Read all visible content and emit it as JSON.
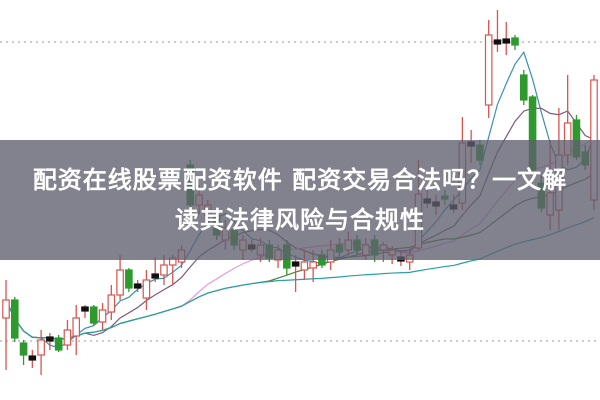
{
  "banner": {
    "title_lines": [
      "配资在线股票配资软件 配资交易合法吗？一文解",
      "读其法律风险与合规性"
    ]
  },
  "chart_data": {
    "type": "candlestick",
    "title": "",
    "xlabel": "",
    "ylabel": "",
    "ylim": [
      0,
      40
    ],
    "grid": false,
    "reference_lines": [
      35.8,
      5.9
    ],
    "colors": {
      "up": "#d9534f",
      "down": "#2e9a2e",
      "doji": "#111111",
      "reference": "#999999"
    },
    "moving_averages": [
      {
        "period": 5,
        "color": "#3a8fb0"
      },
      {
        "period": 10,
        "color": "#7a5a7a"
      },
      {
        "period": 20,
        "color": "#e39be0"
      },
      {
        "period": 30,
        "color": "#4e7d3c"
      },
      {
        "period": 60,
        "color": "#2aa0a0"
      }
    ],
    "candles": [
      [
        8.2,
        10.0,
        12.0,
        3.0
      ],
      [
        10.0,
        6.2,
        10.3,
        5.8
      ],
      [
        5.7,
        4.5,
        6.0,
        3.5
      ],
      [
        4.3,
        4.4,
        5.0,
        3.2
      ],
      [
        4.5,
        6.0,
        7.0,
        2.5
      ],
      [
        6.2,
        6.3,
        6.7,
        5.0
      ],
      [
        6.2,
        5.0,
        6.5,
        4.8
      ],
      [
        5.5,
        7.0,
        8.0,
        5.0
      ],
      [
        6.4,
        8.2,
        9.5,
        4.5
      ],
      [
        9.2,
        9.3,
        9.5,
        8.2
      ],
      [
        9.3,
        7.7,
        9.5,
        7.5
      ],
      [
        7.8,
        9.0,
        9.7,
        7.0
      ],
      [
        8.8,
        10.5,
        11.5,
        8.0
      ],
      [
        10.5,
        13.0,
        14.5,
        10.0
      ],
      [
        13.0,
        11.2,
        13.2,
        10.8
      ],
      [
        11.5,
        11.6,
        12.0,
        10.8
      ],
      [
        10.2,
        12.0,
        13.0,
        9.0
      ],
      [
        12.5,
        12.6,
        14.3,
        11.8
      ],
      [
        12.5,
        13.5,
        14.5,
        11.5
      ],
      [
        13.5,
        14.2,
        14.5,
        11.5
      ],
      [
        13.8,
        15.0,
        15.5,
        13.2
      ],
      [
        23.5,
        19.5,
        24.0,
        19.0
      ],
      [
        19.5,
        20.5,
        21.5,
        18.5
      ],
      [
        18.5,
        19.5,
        20.0,
        17.5
      ],
      [
        18.5,
        16.5,
        19.0,
        16.0
      ],
      [
        16.0,
        17.2,
        18.0,
        15.0
      ],
      [
        17.0,
        15.5,
        17.5,
        15.0
      ],
      [
        15.0,
        16.0,
        16.5,
        14.0
      ],
      [
        15.5,
        15.4,
        16.0,
        14.8
      ],
      [
        14.5,
        15.5,
        16.2,
        13.8
      ],
      [
        15.5,
        14.2,
        16.0,
        13.8
      ],
      [
        14.0,
        15.0,
        15.5,
        13.2
      ],
      [
        15.5,
        13.2,
        16.0,
        12.5
      ],
      [
        13.8,
        13.6,
        14.5,
        10.8
      ],
      [
        13.0,
        13.8,
        15.0,
        12.0
      ],
      [
        13.2,
        13.8,
        15.0,
        11.8
      ],
      [
        14.5,
        13.5,
        15.0,
        13.2
      ],
      [
        13.8,
        15.0,
        16.0,
        13.0
      ],
      [
        15.5,
        14.8,
        16.2,
        14.2
      ],
      [
        15.0,
        16.0,
        16.8,
        14.4
      ],
      [
        16.0,
        15.0,
        16.5,
        14.5
      ],
      [
        14.5,
        15.5,
        16.2,
        14.0
      ],
      [
        16.0,
        14.5,
        16.5,
        13.8
      ],
      [
        15.0,
        15.5,
        15.8,
        13.8
      ],
      [
        14.5,
        15.0,
        15.4,
        13.6
      ],
      [
        14.3,
        14.1,
        15.0,
        13.4
      ],
      [
        13.8,
        14.5,
        15.2,
        13.0
      ],
      [
        15.2,
        20.6,
        24.0,
        15.0
      ],
      [
        20.0,
        20.1,
        21.0,
        19.2
      ],
      [
        19.7,
        19.8,
        20.5,
        18.5
      ],
      [
        20.4,
        20.1,
        21.0,
        19.5
      ],
      [
        19.5,
        19.4,
        20.5,
        18.7
      ],
      [
        19.7,
        25.7,
        28.3,
        19.0
      ],
      [
        25.7,
        25.8,
        27.0,
        23.7
      ],
      [
        25.5,
        24.0,
        26.0,
        23.5
      ],
      [
        29.5,
        36.5,
        38.0,
        28.2
      ],
      [
        36.0,
        35.8,
        39.0,
        34.8
      ],
      [
        36.0,
        36.1,
        37.8,
        34.5
      ],
      [
        36.2,
        35.5,
        36.5,
        35.0
      ],
      [
        32.5,
        30.0,
        33.0,
        29.5
      ],
      [
        30.3,
        23.0,
        30.5,
        22.8
      ],
      [
        21.7,
        19.2,
        22.5,
        18.8
      ],
      [
        18.5,
        20.7,
        26.0,
        17.0
      ],
      [
        19.0,
        24.5,
        29.2,
        17.0
      ],
      [
        24.5,
        27.7,
        32.5,
        23.5
      ],
      [
        28.0,
        24.3,
        28.5,
        24.0
      ],
      [
        24.8,
        23.5,
        25.5,
        23.0
      ],
      [
        20.0,
        32.0,
        32.5,
        19.0
      ]
    ]
  }
}
